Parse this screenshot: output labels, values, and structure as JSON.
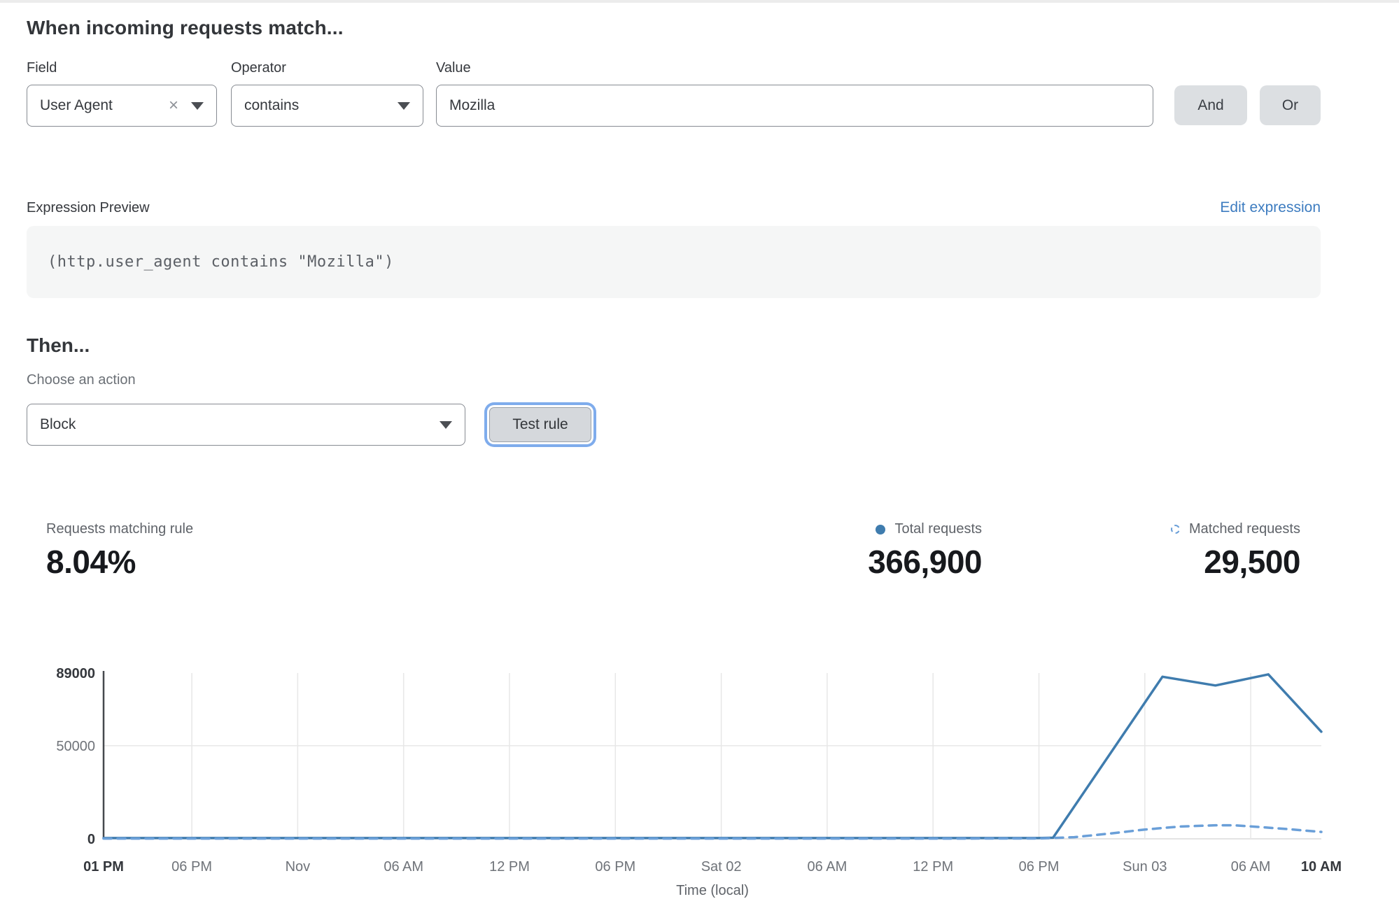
{
  "rule_builder": {
    "title": "When incoming requests match...",
    "field": {
      "label": "Field",
      "value": "User Agent",
      "clear_icon": "×"
    },
    "operator": {
      "label": "Operator",
      "value": "contains"
    },
    "value": {
      "label": "Value",
      "value": "Mozilla"
    },
    "and_label": "And",
    "or_label": "Or"
  },
  "expression": {
    "label": "Expression Preview",
    "edit_link": "Edit expression",
    "code": "(http.user_agent contains \"Mozilla\")"
  },
  "then": {
    "title": "Then...",
    "action_label": "Choose an action",
    "action_value": "Block",
    "test_button": "Test rule"
  },
  "stats": {
    "matching": {
      "label": "Requests matching rule",
      "value": "8.04%"
    },
    "total": {
      "label": "Total requests",
      "value": "366,900"
    },
    "matched": {
      "label": "Matched requests",
      "value": "29,500"
    }
  },
  "colors": {
    "accent_blue": "#3d7cc0",
    "line_solid": "#3f7cae",
    "line_dashed": "#6a9fd8",
    "button_gray": "#dcdfe2",
    "focus_ring": "#7facec"
  },
  "chart_data": {
    "type": "line",
    "title": "",
    "xlabel": "Time (local)",
    "ylabel": "",
    "grid": true,
    "ylim": [
      0,
      89000
    ],
    "xlim": [
      0,
      69
    ],
    "x_unit": "hours after first tick (Fri 01 PM)",
    "yticks": [
      {
        "value": 0,
        "label": "0",
        "bold": true
      },
      {
        "value": 50000,
        "label": "50000",
        "bold": false
      },
      {
        "value": 89000,
        "label": "89000",
        "bold": true
      }
    ],
    "xticks": [
      {
        "h": 0,
        "label": "01 PM",
        "bold": true
      },
      {
        "h": 5,
        "label": "06 PM",
        "bold": false
      },
      {
        "h": 11,
        "label": "Nov",
        "bold": false
      },
      {
        "h": 17,
        "label": "06 AM",
        "bold": false
      },
      {
        "h": 23,
        "label": "12 PM",
        "bold": false
      },
      {
        "h": 29,
        "label": "06 PM",
        "bold": false
      },
      {
        "h": 35,
        "label": "Sat 02",
        "bold": false
      },
      {
        "h": 41,
        "label": "06 AM",
        "bold": false
      },
      {
        "h": 47,
        "label": "12 PM",
        "bold": false
      },
      {
        "h": 53,
        "label": "06 PM",
        "bold": false
      },
      {
        "h": 59,
        "label": "Sun 03",
        "bold": false
      },
      {
        "h": 65,
        "label": "06 AM",
        "bold": false
      },
      {
        "h": 69,
        "label": "10 AM",
        "bold": true
      }
    ],
    "series": [
      {
        "name": "Total requests",
        "style": "solid",
        "color": "#3f7cae",
        "points": [
          [
            0,
            400
          ],
          [
            5,
            400
          ],
          [
            11,
            400
          ],
          [
            17,
            400
          ],
          [
            23,
            400
          ],
          [
            29,
            400
          ],
          [
            35,
            400
          ],
          [
            41,
            400
          ],
          [
            47,
            400
          ],
          [
            53,
            400
          ],
          [
            53.8,
            600
          ],
          [
            60,
            87000
          ],
          [
            63,
            82300
          ],
          [
            66,
            88300
          ],
          [
            69,
            57500
          ]
        ]
      },
      {
        "name": "Matched requests",
        "style": "dashed",
        "color": "#6a9fd8",
        "points": [
          [
            0,
            150
          ],
          [
            5,
            150
          ],
          [
            11,
            150
          ],
          [
            17,
            150
          ],
          [
            23,
            150
          ],
          [
            29,
            150
          ],
          [
            35,
            150
          ],
          [
            41,
            150
          ],
          [
            47,
            150
          ],
          [
            53,
            200
          ],
          [
            55,
            900
          ],
          [
            57,
            2800
          ],
          [
            59,
            5000
          ],
          [
            61,
            6600
          ],
          [
            63,
            7300
          ],
          [
            64,
            7300
          ],
          [
            65,
            6700
          ],
          [
            67,
            5300
          ],
          [
            69,
            3700
          ]
        ]
      }
    ],
    "legend_position": "top-right above chart (with stat values)"
  }
}
